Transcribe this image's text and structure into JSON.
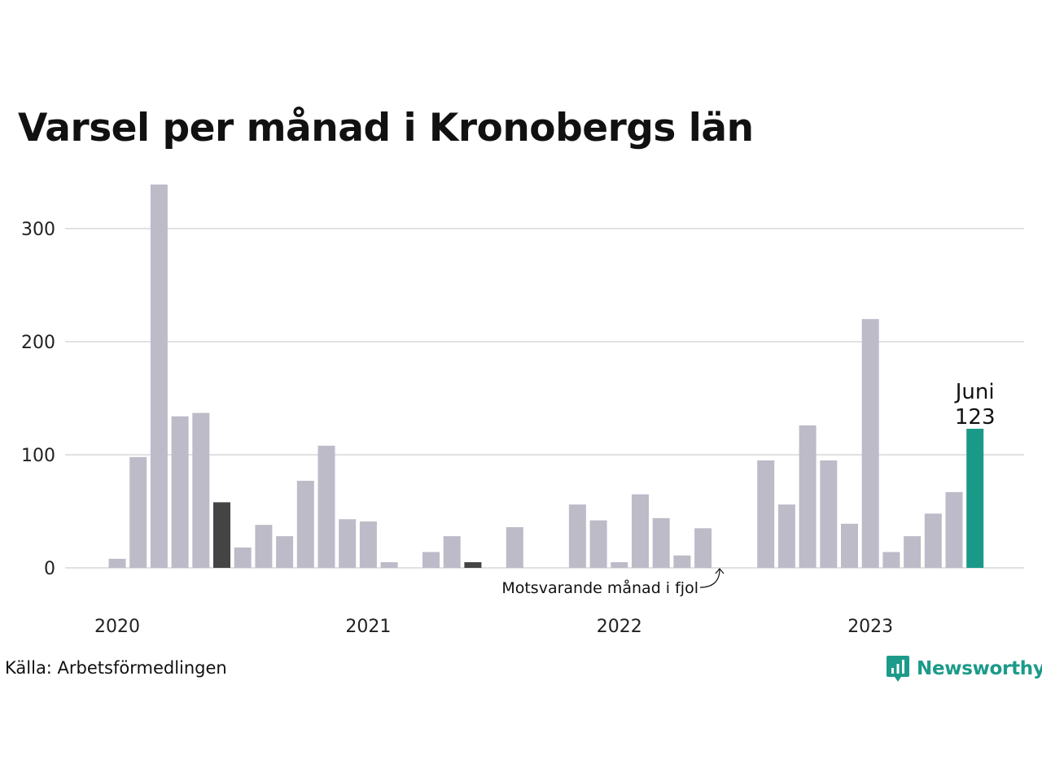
{
  "title": "Varsel per månad i Kronobergs län",
  "source": "Källa: Arbetsförmedlingen",
  "brand": {
    "name": "Newsworthy",
    "color": "#1c9a8a",
    "icon": "bar-chart-badge-icon"
  },
  "highlight": {
    "month_label": "Juni",
    "value_label": "123"
  },
  "annotation": {
    "text": "Motsvarande månad i fjol"
  },
  "colors": {
    "default": "#bdbbc8",
    "last_year": "#444444",
    "current": "#1a9988",
    "grid": "#e1e1e1"
  },
  "chart_data": {
    "type": "bar",
    "title": "Varsel per månad i Kronobergs län",
    "xlabel": "",
    "ylabel": "",
    "ylim": [
      0,
      340
    ],
    "yticks": [
      0,
      100,
      200,
      300
    ],
    "x_tick_labels": [
      {
        "label": "2020",
        "index": 0
      },
      {
        "label": "2021",
        "index": 12
      },
      {
        "label": "2022",
        "index": 24
      },
      {
        "label": "2023",
        "index": 36
      }
    ],
    "grid": true,
    "categories": [
      "2020-01",
      "2020-02",
      "2020-03",
      "2020-04",
      "2020-05",
      "2020-06",
      "2020-07",
      "2020-08",
      "2020-09",
      "2020-10",
      "2020-11",
      "2020-12",
      "2021-01",
      "2021-02",
      "2021-03",
      "2021-04",
      "2021-05",
      "2021-06",
      "2021-07",
      "2021-08",
      "2021-09",
      "2021-10",
      "2021-11",
      "2021-12",
      "2022-01",
      "2022-02",
      "2022-03",
      "2022-04",
      "2022-05",
      "2022-06",
      "2022-07",
      "2022-08",
      "2022-09",
      "2022-10",
      "2022-11",
      "2022-12",
      "2023-01",
      "2023-02",
      "2023-03",
      "2023-04",
      "2023-05",
      "2023-06"
    ],
    "values": [
      8,
      98,
      339,
      134,
      137,
      58,
      18,
      38,
      28,
      77,
      108,
      43,
      41,
      5,
      0,
      14,
      28,
      5,
      0,
      36,
      0,
      0,
      56,
      42,
      5,
      65,
      44,
      11,
      35,
      0,
      0,
      95,
      56,
      126,
      95,
      39,
      220,
      14,
      28,
      48,
      67,
      123
    ],
    "highlight_last_year_indices": [
      5,
      17
    ],
    "highlight_current_index": 41
  }
}
